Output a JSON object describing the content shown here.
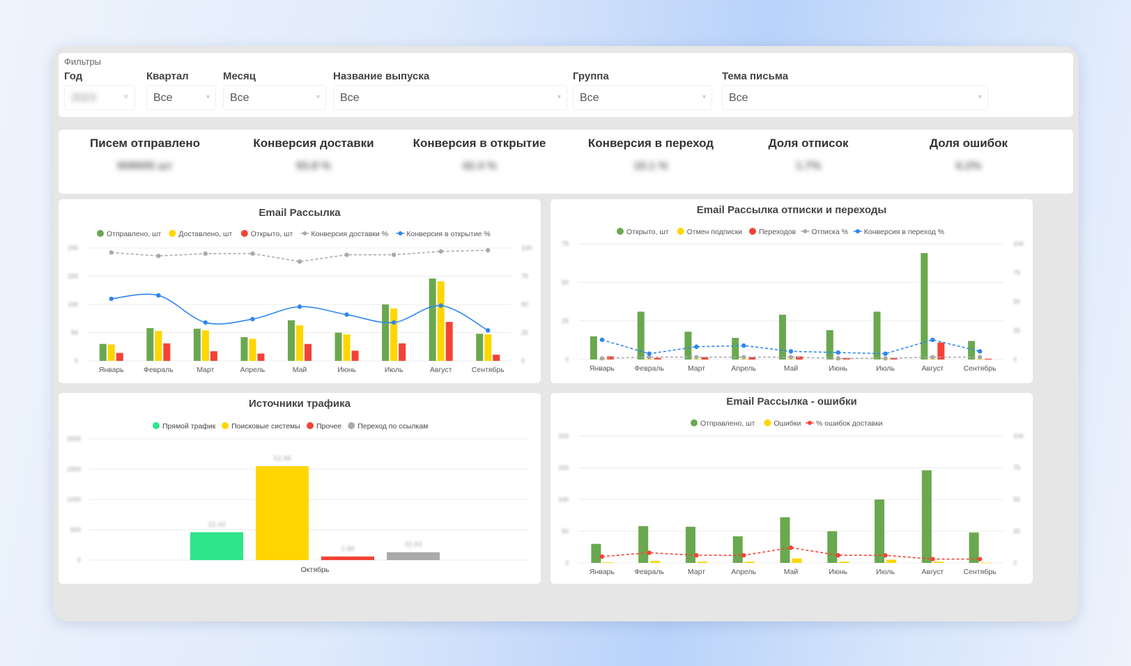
{
  "filters": {
    "title": "Фильтры",
    "year": {
      "label": "Год",
      "value": "2023"
    },
    "quarter": {
      "label": "Квартал",
      "value": "Все"
    },
    "month": {
      "label": "Месяц",
      "value": "Все"
    },
    "issue": {
      "label": "Название выпуска",
      "value": "Все"
    },
    "group": {
      "label": "Группа",
      "value": "Все"
    },
    "subject": {
      "label": "Тема письма",
      "value": "Все"
    }
  },
  "kpis": [
    {
      "title": "Писем отправлено",
      "value": "609005 шт"
    },
    {
      "title": "Конверсия доставки",
      "value": "93.8 %"
    },
    {
      "title": "Конверсия в открытие",
      "value": "42.4 %"
    },
    {
      "title": "Конверсия в переход",
      "value": "10.1 %"
    },
    {
      "title": "Доля отписок",
      "value": "1.7%"
    },
    {
      "title": "Доля ошибок",
      "value": "6.2%"
    }
  ],
  "colors": {
    "green": "#6aa84f",
    "yellow": "#ffd600",
    "red": "#f44336",
    "gray": "#aaaaaa",
    "blue": "#2e86f0",
    "teal": "#2ee58c"
  },
  "chart_data": [
    {
      "id": "email",
      "type": "bar",
      "title": "Email Рассылка",
      "categories": [
        "Январь",
        "Февраль",
        "Март",
        "Апрель",
        "Май",
        "Июнь",
        "Июль",
        "Август",
        "Сентябрь"
      ],
      "y_ticks": [
        "0",
        "50",
        "100",
        "150",
        "200"
      ],
      "y2_ticks": [
        "0",
        "25",
        "50",
        "75",
        "100"
      ],
      "ylim": [
        0,
        200
      ],
      "y2lim": [
        0,
        100
      ],
      "series": [
        {
          "name": "Отправлено, шт",
          "kind": "bar",
          "color": "#6aa84f",
          "values": [
            30,
            58,
            57,
            42,
            72,
            50,
            100,
            146,
            48
          ]
        },
        {
          "name": "Доставлено, шт",
          "kind": "bar",
          "color": "#ffd600",
          "values": [
            29,
            53,
            54,
            39,
            63,
            47,
            93,
            141,
            47
          ]
        },
        {
          "name": "Открыто, шт",
          "kind": "bar",
          "color": "#f44336",
          "values": [
            14,
            31,
            17,
            13,
            30,
            18,
            31,
            69,
            11
          ]
        },
        {
          "name": "Конверсия доставки %",
          "kind": "line",
          "axis": "right",
          "dashed": true,
          "color": "#aaaaaa",
          "values": [
            96,
            93,
            95,
            95,
            88,
            94,
            94,
            97,
            98
          ]
        },
        {
          "name": "Конверсия в открытие %",
          "kind": "line",
          "axis": "right",
          "smooth": true,
          "color": "#2e86f0",
          "values": [
            55,
            58,
            34,
            37,
            48,
            41,
            34,
            49,
            27
          ]
        }
      ]
    },
    {
      "id": "unsub",
      "type": "bar",
      "title": "Email Рассылка отписки и переходы",
      "categories": [
        "Январь",
        "Февраль",
        "Март",
        "Апрель",
        "Май",
        "Июнь",
        "Июль",
        "Август",
        "Сентябрь"
      ],
      "y_ticks": [
        "0",
        "25",
        "50",
        "75"
      ],
      "y2_ticks": [
        "0",
        "25",
        "50",
        "75",
        "100"
      ],
      "ylim": [
        0,
        75
      ],
      "y2lim": [
        0,
        100
      ],
      "series": [
        {
          "name": "Открыто, шт",
          "kind": "bar",
          "color": "#6aa84f",
          "values": [
            15,
            31,
            18,
            14,
            29,
            19,
            31,
            69,
            12
          ]
        },
        {
          "name": "Отмен подписки",
          "kind": "bar",
          "color": "#ffd600",
          "values": [
            0.3,
            0.3,
            0.3,
            0.3,
            0.3,
            0.3,
            0.3,
            0.3,
            0.3
          ]
        },
        {
          "name": "Переходов",
          "kind": "bar",
          "color": "#f44336",
          "values": [
            2,
            1,
            1.5,
            1.5,
            2,
            1,
            1,
            11,
            0.5
          ]
        },
        {
          "name": "Отписка %",
          "kind": "line",
          "axis": "right",
          "dashed": true,
          "color": "#aaaaaa",
          "values": [
            1,
            2,
            2,
            2,
            2,
            1,
            1,
            2,
            2
          ]
        },
        {
          "name": "Конверсия в переход %",
          "kind": "line",
          "axis": "right",
          "dashed": true,
          "color": "#2e86f0",
          "values": [
            17,
            5,
            11,
            12,
            7,
            6,
            5,
            17,
            7
          ]
        }
      ]
    },
    {
      "id": "traffic",
      "type": "bar",
      "title": "Источники трафика",
      "categories": [
        "Октябрь"
      ],
      "y_ticks": [
        "0",
        "500",
        "1000",
        "1500",
        "2000"
      ],
      "ylim": [
        0,
        2000
      ],
      "series": [
        {
          "name": "Прямой трафик",
          "kind": "bar",
          "color": "#2ee58c",
          "values": [
            460
          ],
          "label": "22.43"
        },
        {
          "name": "Поисковые системы",
          "kind": "bar",
          "color": "#ffd600",
          "values": [
            1550
          ],
          "label": "52.98"
        },
        {
          "name": "Прочее",
          "kind": "bar",
          "color": "#f44336",
          "values": [
            60
          ],
          "label": "1.96"
        },
        {
          "name": "Переход по ссылкам",
          "kind": "bar",
          "color": "#aaaaaa",
          "values": [
            130
          ],
          "label": "22.63"
        }
      ]
    },
    {
      "id": "errors",
      "type": "bar",
      "title": "Email Рассылка - ошибки",
      "categories": [
        "Январь",
        "Февраль",
        "Март",
        "Апрель",
        "Май",
        "Июнь",
        "Июль",
        "Август",
        "Сентябрь"
      ],
      "y_ticks": [
        "0",
        "50",
        "100",
        "150",
        "200"
      ],
      "y2_ticks": [
        "0",
        "25",
        "50",
        "75",
        "100"
      ],
      "ylim": [
        0,
        200
      ],
      "y2lim": [
        0,
        100
      ],
      "series": [
        {
          "name": "Отправлено, шт",
          "kind": "bar",
          "color": "#6aa84f",
          "values": [
            30,
            58,
            57,
            42,
            72,
            50,
            100,
            146,
            48
          ]
        },
        {
          "name": "Ошибки",
          "kind": "bar",
          "color": "#ffd600",
          "values": [
            1,
            3,
            2,
            2,
            7,
            2,
            5,
            2,
            0.5
          ]
        },
        {
          "name": "% ошибок доставки",
          "kind": "line",
          "axis": "right",
          "dashed": true,
          "color": "#f44336",
          "values": [
            5,
            8,
            6,
            6,
            12,
            6,
            6,
            3,
            3
          ]
        }
      ]
    }
  ]
}
